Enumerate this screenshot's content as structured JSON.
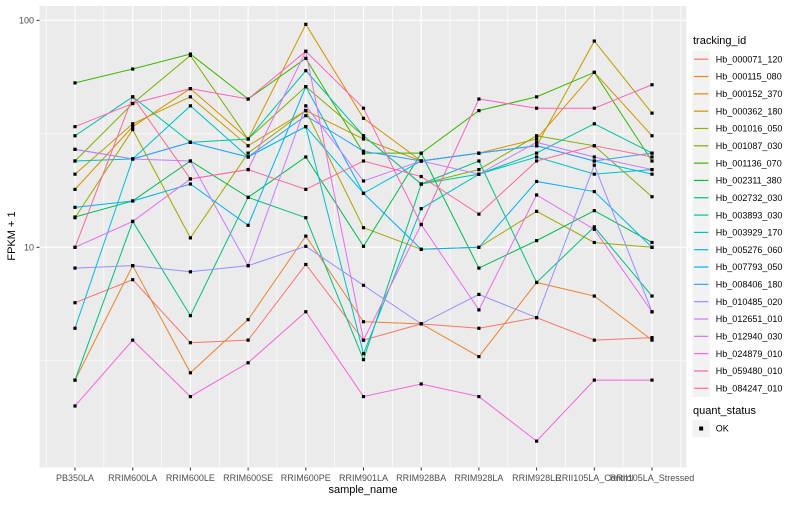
{
  "figure": {
    "background": "#FFFFFF",
    "panel_background": "#EBEBEB",
    "grid_color": "#FFFFFF",
    "axis_text_color": "#4D4D4D",
    "tick_color": "#333333",
    "axis_title_color": "#000000",
    "point_color": "#000000",
    "legend_key_fill": "#F2F2F2"
  },
  "chart_data": {
    "type": "line",
    "title": "",
    "xlabel": "sample_name",
    "ylabel": "FPKM + 1",
    "y_scale": "log10",
    "ylim": [
      1.08,
      115
    ],
    "y_major_ticks": [
      100,
      10
    ],
    "y_tick_labels": [
      "100",
      "10"
    ],
    "y_minor_ticks": [
      31.62,
      3.162
    ],
    "grid": true,
    "legend_position": "right",
    "categories": [
      "PB350LA",
      "RRIM600LA",
      "RRIM600LE",
      "RRIM600SE",
      "RRIM600PE",
      "RRIM901LA",
      "RRIM928BA",
      "RRIM928LA",
      "RRIM928LE",
      "RRII105LA_Control",
      "RRII105LA_Stressed"
    ],
    "legend": {
      "tracking_id_title": "tracking_id",
      "quant_status_title": "quant_status",
      "quant_status_entries": [
        "OK"
      ]
    },
    "series": [
      {
        "name": "Hb_000071_120",
        "color": "#F8766D",
        "values": [
          5.7,
          7.2,
          3.8,
          3.9,
          8.4,
          3.9,
          4.6,
          4.4,
          4.9,
          3.9,
          4.0
        ]
      },
      {
        "name": "Hb_000115_080",
        "color": "#EA8331",
        "values": [
          2.6,
          8.3,
          2.8,
          4.8,
          11.2,
          4.7,
          4.6,
          3.3,
          7.0,
          6.1,
          3.9
        ]
      },
      {
        "name": "Hb_000152_370",
        "color": "#D89000",
        "values": [
          18,
          34,
          50,
          30,
          96,
          37,
          24,
          26,
          30,
          59,
          31
        ]
      },
      {
        "name": "Hb_000362_180",
        "color": "#C09B00",
        "values": [
          21,
          35,
          46,
          28,
          40,
          30,
          24,
          26,
          28,
          81,
          39
        ]
      },
      {
        "name": "Hb_001016_050",
        "color": "#A3A500",
        "values": [
          13.5,
          33,
          11,
          26,
          40,
          12.2,
          9.8,
          10,
          14.4,
          10.5,
          10
        ]
      },
      {
        "name": "Hb_001087_030",
        "color": "#7CAE00",
        "values": [
          24,
          43,
          70,
          30,
          51,
          31,
          19,
          22,
          31,
          28,
          16.7
        ]
      },
      {
        "name": "Hb_001136_070",
        "color": "#39B600",
        "values": [
          53,
          61,
          71,
          45,
          68,
          26,
          26,
          40,
          46,
          59,
          24
        ]
      },
      {
        "name": "Hb_002311_380",
        "color": "#00BB4E",
        "values": [
          13.6,
          16,
          24,
          16.6,
          25,
          10.1,
          26,
          8.1,
          10.7,
          14.5,
          10.5
        ]
      },
      {
        "name": "Hb_002732_030",
        "color": "#00BF7D",
        "values": [
          2.6,
          13,
          5,
          16.6,
          13.5,
          3.2,
          19,
          24,
          7,
          12.3,
          6.1
        ]
      },
      {
        "name": "Hb_003893_030",
        "color": "#00C1A3",
        "values": [
          31,
          46,
          29,
          30,
          60,
          31,
          19,
          21,
          26,
          35,
          26
        ]
      },
      {
        "name": "Hb_003929_170",
        "color": "#00BFC4",
        "values": [
          24,
          24.5,
          42,
          25,
          34,
          3.4,
          14.8,
          21,
          25,
          21,
          22
        ]
      },
      {
        "name": "Hb_005276_060",
        "color": "#00BAE0",
        "values": [
          4.4,
          24.5,
          29,
          25,
          34,
          17.3,
          24,
          26,
          28,
          24,
          21
        ]
      },
      {
        "name": "Hb_007793_050",
        "color": "#00B0F6",
        "values": [
          15,
          16,
          19,
          12.5,
          51,
          17.3,
          9.8,
          10,
          19.5,
          17.6,
          10
        ]
      },
      {
        "name": "Hb_008406_180",
        "color": "#35A2FF",
        "values": [
          27,
          24.5,
          29,
          25,
          38,
          26.5,
          24,
          26,
          28,
          24,
          26
        ]
      },
      {
        "name": "Hb_010485_020",
        "color": "#9590FF",
        "values": [
          8.1,
          8.3,
          7.8,
          8.3,
          10.1,
          6.8,
          4.6,
          6.2,
          4.9,
          23,
          5.2
        ]
      },
      {
        "name": "Hb_012651_010",
        "color": "#C77CFF",
        "values": [
          27,
          24.5,
          24,
          8.3,
          42,
          19.6,
          24,
          21,
          29,
          25,
          22
        ]
      },
      {
        "name": "Hb_012940_030",
        "color": "#E76BF3",
        "values": [
          10,
          13,
          20,
          22,
          73,
          3.9,
          12.6,
          5.3,
          17,
          12,
          5.2
        ]
      },
      {
        "name": "Hb_024879_010",
        "color": "#FA62DB",
        "values": [
          2.0,
          3.9,
          2.2,
          3.1,
          5.2,
          2.2,
          2.5,
          2.2,
          1.4,
          2.6,
          2.6
        ]
      },
      {
        "name": "Hb_059480_010",
        "color": "#FF62BC",
        "values": [
          34,
          43,
          50,
          45,
          73,
          41,
          12.6,
          45,
          41,
          41,
          52
        ]
      },
      {
        "name": "Hb_084247_010",
        "color": "#FF6A98",
        "values": [
          10,
          46,
          20,
          22,
          18,
          24,
          20.5,
          14,
          24,
          28,
          25
        ]
      }
    ]
  }
}
